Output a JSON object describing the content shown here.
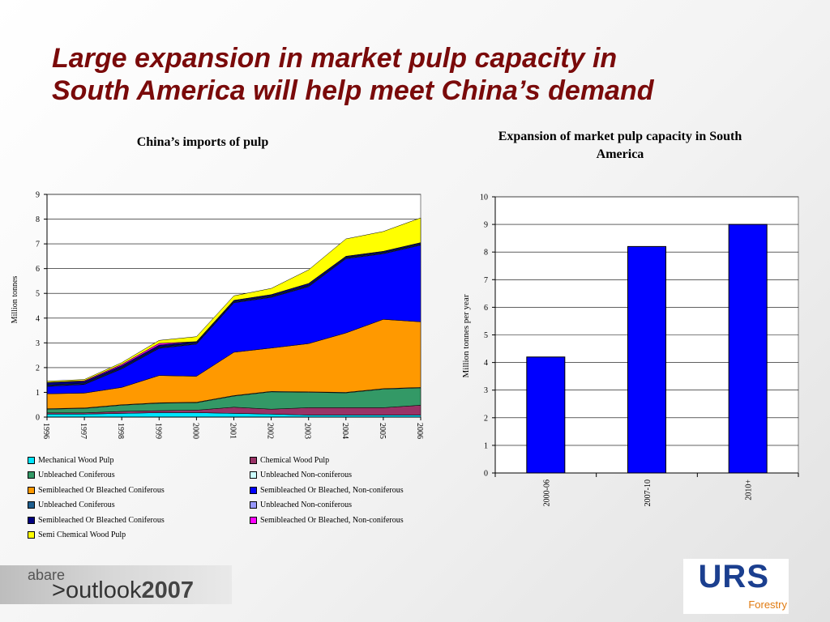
{
  "slide": {
    "title_line1": "Large expansion in market pulp capacity in",
    "title_line2": "South America will help meet China’s demand"
  },
  "footer": {
    "abare": "abare",
    "outlook_prefix": ">",
    "outlook_word": "outlook",
    "outlook_year": "2007",
    "urs_logo": "URS",
    "urs_sub": "Forestry"
  },
  "chart_data": [
    {
      "type": "area",
      "stacked": true,
      "title": "China’s imports of pulp",
      "ylabel": "Million tonnes",
      "ylim": [
        0,
        9
      ],
      "yticks": [
        "0",
        "1",
        "2",
        "3",
        "4",
        "5",
        "6",
        "7",
        "8",
        "9"
      ],
      "x": [
        "1996",
        "1997",
        "1998",
        "1999",
        "2000",
        "2001",
        "2002",
        "2003",
        "2004",
        "2005",
        "2006"
      ],
      "legend_position": "bottom",
      "series": [
        {
          "name": "Mechanical Wood Pulp",
          "color": "#00e5ff",
          "values": [
            0.12,
            0.12,
            0.15,
            0.18,
            0.18,
            0.15,
            0.12,
            0.08,
            0.08,
            0.08,
            0.08
          ]
        },
        {
          "name": "Chemical Wood Pulp",
          "color": "#993366",
          "values": [
            0.05,
            0.05,
            0.08,
            0.08,
            0.1,
            0.25,
            0.2,
            0.3,
            0.3,
            0.3,
            0.4
          ]
        },
        {
          "name": "Unbleached Coniferous",
          "color": "#339966",
          "values": [
            0.15,
            0.18,
            0.25,
            0.3,
            0.3,
            0.45,
            0.7,
            0.62,
            0.6,
            0.75,
            0.7
          ]
        },
        {
          "name": "Unbleached Non-coniferous",
          "color": "#ccffff",
          "values": [
            0.02,
            0.02,
            0.02,
            0.02,
            0.02,
            0.02,
            0.02,
            0.02,
            0.02,
            0.02,
            0.02
          ]
        },
        {
          "name": "Semibleached Or Bleached Coniferous",
          "color": "#ff9900",
          "values": [
            0.6,
            0.6,
            0.7,
            1.1,
            1.05,
            1.75,
            1.75,
            1.95,
            2.4,
            2.8,
            2.65
          ]
        },
        {
          "name": "Semibleached Or Bleached, Non-coniferous",
          "color": "#0000ff",
          "values": [
            0.3,
            0.35,
            0.75,
            1.1,
            1.3,
            2.0,
            2.05,
            2.3,
            3.0,
            2.65,
            3.1
          ]
        },
        {
          "name": "Unbleached Non-coniferous",
          "color": "#9999ff",
          "values": [
            0.02,
            0.02,
            0.02,
            0.02,
            0.02,
            0.02,
            0.02,
            0.02,
            0.02,
            0.02,
            0.02
          ]
        },
        {
          "name": "Unbleached Coniferous",
          "color": "#1f5f8f",
          "values": [
            0.03,
            0.03,
            0.03,
            0.03,
            0.03,
            0.03,
            0.03,
            0.03,
            0.03,
            0.03,
            0.03
          ]
        },
        {
          "name": "Semibleached Or Bleached Coniferous",
          "color": "#000080",
          "values": [
            0.11,
            0.07,
            0.08,
            0.08,
            0.05,
            0.05,
            0.06,
            0.08,
            0.05,
            0.05,
            0.05
          ]
        },
        {
          "name": "Semibleached Or Bleached, Non-coniferous",
          "color": "#ff00ff",
          "values": [
            0.0,
            0.03,
            0.05,
            0.07,
            0.0,
            0.0,
            0.0,
            0.0,
            0.0,
            0.0,
            0.0
          ]
        },
        {
          "name": "Semi Chemical Wood Pulp",
          "color": "#ffff00",
          "values": [
            0.05,
            0.05,
            0.07,
            0.12,
            0.2,
            0.18,
            0.25,
            0.55,
            0.7,
            0.8,
            1.0
          ]
        }
      ]
    },
    {
      "type": "bar",
      "title": "Expansion of market pulp capacity in South America",
      "ylabel": "Million tonnes per year",
      "ylim": [
        0,
        10
      ],
      "yticks": [
        "0",
        "1",
        "2",
        "3",
        "4",
        "5",
        "6",
        "7",
        "8",
        "9",
        "10"
      ],
      "categories": [
        "2000-06",
        "2007-10",
        "2010+"
      ],
      "values": [
        4.2,
        8.2,
        9.0
      ],
      "color": "#0000ff"
    }
  ]
}
